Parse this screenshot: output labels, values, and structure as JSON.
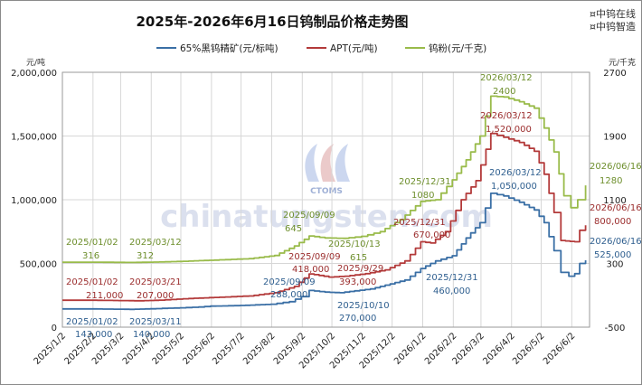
{
  "brand": {
    "line1": "¤中钨在线",
    "line2": "¤中钨智造"
  },
  "watermark": {
    "text": "chinatungsten.com",
    "logo_text": "CTOMS"
  },
  "chart_data": {
    "type": "line",
    "title": "2025年-2026年6月16日钨制品价格走势图",
    "left_axis_unit": "元/吨",
    "right_axis_unit": "元/千克",
    "left_ylim": [
      0,
      2000000
    ],
    "left_ticks": [
      "0",
      "500,000",
      "1,000,000",
      "1,500,000",
      "2,000,000"
    ],
    "right_ylim": [
      -500,
      2700
    ],
    "right_ticks": [
      "-500",
      "300",
      "1100",
      "1900",
      "2700"
    ],
    "x_ticks": [
      "2025/1/2",
      "2025/2/2",
      "2025/3/2",
      "2025/4/2",
      "2025/5/2",
      "2025/6/2",
      "2025/7/2",
      "2025/8/2",
      "2025/9/2",
      "2025/10/2",
      "2025/11/2",
      "2025/12/2",
      "2026/1/2",
      "2026/2/2",
      "2026/3/2",
      "2026/4/2",
      "2026/5/2",
      "2026/6/2"
    ],
    "x_range": [
      "2025-01-02",
      "2026-06-20"
    ],
    "grid": true,
    "legend_position": "top",
    "series": [
      {
        "name": "65%黑钨精矿(元/标吨)",
        "color": "#3a6fa5",
        "axis": "left",
        "points": [
          [
            "2025-01-02",
            143000
          ],
          [
            "2025-02-01",
            143000
          ],
          [
            "2025-03-11",
            140000
          ],
          [
            "2025-04-01",
            144000
          ],
          [
            "2025-05-01",
            152000
          ],
          [
            "2025-05-20",
            158000
          ],
          [
            "2025-06-01",
            165000
          ],
          [
            "2025-07-01",
            170000
          ],
          [
            "2025-08-01",
            180000
          ],
          [
            "2025-08-20",
            200000
          ],
          [
            "2025-09-01",
            240000
          ],
          [
            "2025-09-09",
            288000
          ],
          [
            "2025-09-25",
            275000
          ],
          [
            "2025-10-10",
            270000
          ],
          [
            "2025-10-25",
            285000
          ],
          [
            "2025-11-10",
            300000
          ],
          [
            "2025-11-25",
            330000
          ],
          [
            "2025-12-15",
            370000
          ],
          [
            "2025-12-31",
            460000
          ],
          [
            "2026-01-15",
            520000
          ],
          [
            "2026-02-01",
            560000
          ],
          [
            "2026-02-15",
            700000
          ],
          [
            "2026-03-01",
            820000
          ],
          [
            "2026-03-12",
            1050000
          ],
          [
            "2026-03-25",
            1030000
          ],
          [
            "2026-04-10",
            980000
          ],
          [
            "2026-04-25",
            920000
          ],
          [
            "2026-05-05",
            820000
          ],
          [
            "2026-05-15",
            600000
          ],
          [
            "2026-05-22",
            430000
          ],
          [
            "2026-05-30",
            400000
          ],
          [
            "2026-06-05",
            420000
          ],
          [
            "2026-06-10",
            500000
          ],
          [
            "2026-06-16",
            525000
          ]
        ]
      },
      {
        "name": "APT(元/吨)",
        "color": "#b33a3a",
        "axis": "left",
        "points": [
          [
            "2025-01-02",
            211000
          ],
          [
            "2025-02-01",
            211000
          ],
          [
            "2025-03-21",
            207000
          ],
          [
            "2025-04-10",
            212000
          ],
          [
            "2025-05-10",
            225000
          ],
          [
            "2025-06-10",
            235000
          ],
          [
            "2025-07-10",
            245000
          ],
          [
            "2025-08-05",
            270000
          ],
          [
            "2025-08-25",
            320000
          ],
          [
            "2025-09-09",
            418000
          ],
          [
            "2025-09-29",
            393000
          ],
          [
            "2025-10-15",
            400000
          ],
          [
            "2025-11-05",
            420000
          ],
          [
            "2025-11-25",
            450000
          ],
          [
            "2025-12-15",
            520000
          ],
          [
            "2025-12-31",
            670000
          ],
          [
            "2026-01-10",
            660000
          ],
          [
            "2026-01-25",
            750000
          ],
          [
            "2026-02-10",
            1000000
          ],
          [
            "2026-02-25",
            1150000
          ],
          [
            "2026-03-12",
            1520000
          ],
          [
            "2026-03-25",
            1490000
          ],
          [
            "2026-04-10",
            1450000
          ],
          [
            "2026-04-25",
            1380000
          ],
          [
            "2026-05-05",
            1200000
          ],
          [
            "2026-05-15",
            900000
          ],
          [
            "2026-05-22",
            680000
          ],
          [
            "2026-06-05",
            670000
          ],
          [
            "2026-06-10",
            760000
          ],
          [
            "2026-06-16",
            800000
          ]
        ]
      },
      {
        "name": "钨粉(元/千克)",
        "color": "#99bb4a",
        "axis": "right",
        "points": [
          [
            "2025-01-02",
            316
          ],
          [
            "2025-02-01",
            316
          ],
          [
            "2025-03-12",
            312
          ],
          [
            "2025-04-10",
            318
          ],
          [
            "2025-05-10",
            330
          ],
          [
            "2025-06-10",
            345
          ],
          [
            "2025-07-10",
            360
          ],
          [
            "2025-08-05",
            400
          ],
          [
            "2025-08-25",
            520
          ],
          [
            "2025-09-09",
            645
          ],
          [
            "2025-09-25",
            620
          ],
          [
            "2025-10-13",
            615
          ],
          [
            "2025-11-01",
            640
          ],
          [
            "2025-11-20",
            700
          ],
          [
            "2025-12-10",
            850
          ],
          [
            "2025-12-31",
            1080
          ],
          [
            "2026-01-15",
            1100
          ],
          [
            "2026-02-01",
            1350
          ],
          [
            "2026-02-15",
            1600
          ],
          [
            "2026-03-01",
            1900
          ],
          [
            "2026-03-12",
            2400
          ],
          [
            "2026-03-25",
            2390
          ],
          [
            "2026-04-10",
            2330
          ],
          [
            "2026-04-25",
            2250
          ],
          [
            "2026-05-05",
            2000
          ],
          [
            "2026-05-15",
            1700
          ],
          [
            "2026-05-25",
            1150
          ],
          [
            "2026-06-01",
            1000
          ],
          [
            "2026-06-08",
            1100
          ],
          [
            "2026-06-16",
            1280
          ]
        ]
      }
    ],
    "annotations": [
      {
        "text": "2025/01/02",
        "x": "2025-01-02",
        "series": 2,
        "color": "#6e8f2d"
      },
      {
        "text": "316",
        "x": "2025-01-02",
        "series": 2,
        "color": "#6e8f2d"
      },
      {
        "text": "2025/03/12",
        "x": "2025-03-12",
        "series": 2,
        "color": "#6e8f2d"
      },
      {
        "text": "312",
        "x": "2025-03-12",
        "series": 2,
        "color": "#6e8f2d"
      },
      {
        "text": "2025/01/02",
        "x": "2025-01-02",
        "series": 1,
        "color": "#9b2d2d"
      },
      {
        "text": "211,000",
        "x": "2025-01-02",
        "series": 1,
        "color": "#9b2d2d"
      },
      {
        "text": "2025/03/21",
        "x": "2025-03-21",
        "series": 1,
        "color": "#9b2d2d"
      },
      {
        "text": "207,000",
        "x": "2025-03-21",
        "series": 1,
        "color": "#9b2d2d"
      },
      {
        "text": "2025/01/02",
        "x": "2025-01-02",
        "series": 0,
        "color": "#2f5f8f"
      },
      {
        "text": "143,000",
        "x": "2025-01-02",
        "series": 0,
        "color": "#2f5f8f"
      },
      {
        "text": "2025/03/11",
        "x": "2025-03-11",
        "series": 0,
        "color": "#2f5f8f"
      },
      {
        "text": "140,000",
        "x": "2025-03-11",
        "series": 0,
        "color": "#2f5f8f"
      },
      {
        "text": "2025/09/09",
        "x": "2025-09-09",
        "series": 2,
        "color": "#6e8f2d"
      },
      {
        "text": "645",
        "x": "2025-09-09",
        "series": 2,
        "color": "#6e8f2d"
      },
      {
        "text": "2025/10/13",
        "x": "2025-10-13",
        "series": 2,
        "color": "#6e8f2d"
      },
      {
        "text": "615",
        "x": "2025-10-13",
        "series": 2,
        "color": "#6e8f2d"
      },
      {
        "text": "2025/09/09",
        "x": "2025-09-09",
        "series": 1,
        "color": "#9b2d2d"
      },
      {
        "text": "418,000",
        "x": "2025-09-09",
        "series": 1,
        "color": "#9b2d2d"
      },
      {
        "text": "2025/9/29",
        "x": "2025-09-29",
        "series": 1,
        "color": "#9b2d2d"
      },
      {
        "text": "393,000",
        "x": "2025-09-29",
        "series": 1,
        "color": "#9b2d2d"
      },
      {
        "text": "2025/09/09",
        "x": "2025-09-09",
        "series": 0,
        "color": "#2f5f8f"
      },
      {
        "text": "288,000",
        "x": "2025-09-09",
        "series": 0,
        "color": "#2f5f8f"
      },
      {
        "text": "2025/10/10",
        "x": "2025-10-10",
        "series": 0,
        "color": "#2f5f8f"
      },
      {
        "text": "270,000",
        "x": "2025-10-10",
        "series": 0,
        "color": "#2f5f8f"
      },
      {
        "text": "2025/12/31",
        "x": "2025-12-31",
        "series": 2,
        "color": "#6e8f2d"
      },
      {
        "text": "1080",
        "x": "2025-12-31",
        "series": 2,
        "color": "#6e8f2d"
      },
      {
        "text": "2025/12/31",
        "x": "2025-12-31",
        "series": 1,
        "color": "#9b2d2d"
      },
      {
        "text": "670,000",
        "x": "2025-12-31",
        "series": 1,
        "color": "#9b2d2d"
      },
      {
        "text": "2025/12/31",
        "x": "2025-12-31",
        "series": 0,
        "color": "#2f5f8f"
      },
      {
        "text": "460,000",
        "x": "2025-12-31",
        "series": 0,
        "color": "#2f5f8f"
      },
      {
        "text": "2026/03/12",
        "x": "2026-03-12",
        "series": 2,
        "color": "#6e8f2d"
      },
      {
        "text": "2400",
        "x": "2026-03-12",
        "series": 2,
        "color": "#6e8f2d"
      },
      {
        "text": "2026/03/12",
        "x": "2026-03-12",
        "series": 1,
        "color": "#9b2d2d"
      },
      {
        "text": "1,520,000",
        "x": "2026-03-12",
        "series": 1,
        "color": "#9b2d2d"
      },
      {
        "text": "2026/03/12",
        "x": "2026-03-12",
        "series": 0,
        "color": "#2f5f8f"
      },
      {
        "text": "1,050,000",
        "x": "2026-03-12",
        "series": 0,
        "color": "#2f5f8f"
      },
      {
        "text": "2026/06/16",
        "x": "2026-06-16",
        "series": 2,
        "color": "#6e8f2d"
      },
      {
        "text": "1280",
        "x": "2026-06-16",
        "series": 2,
        "color": "#6e8f2d"
      },
      {
        "text": "2026/06/16",
        "x": "2026-06-16",
        "series": 1,
        "color": "#9b2d2d"
      },
      {
        "text": "800,000",
        "x": "2026-06-16",
        "series": 1,
        "color": "#9b2d2d"
      },
      {
        "text": "2026/06/16",
        "x": "2026-06-16",
        "series": 0,
        "color": "#2f5f8f"
      },
      {
        "text": "525,000",
        "x": "2026-06-16",
        "series": 0,
        "color": "#2f5f8f"
      }
    ]
  }
}
